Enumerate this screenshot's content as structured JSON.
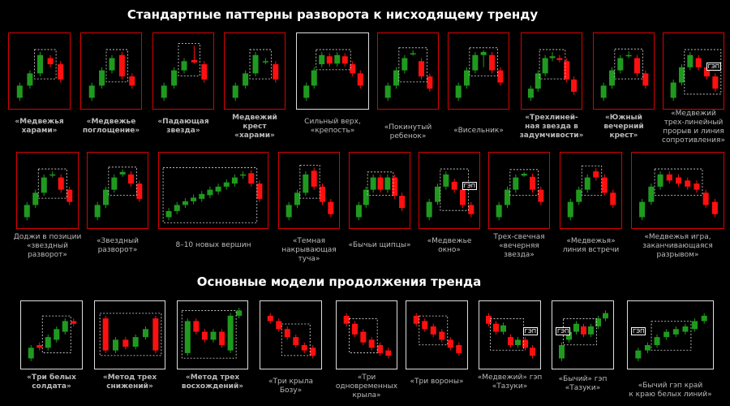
{
  "titles": {
    "reversal": "Стандартные паттерны разворота к нисходящему тренду",
    "continuation": "Основные модели продолжения тренда"
  },
  "colors": {
    "up": "#1f9a1f",
    "down": "#ff1010",
    "frame_reversal": "#d00000",
    "frame_continuation": "#dddddd"
  },
  "panels": [
    {
      "label": "«Медвежья\nхарами»",
      "bold": true,
      "c": [
        [
          1,
          3
        ],
        [
          3,
          5
        ],
        [
          5,
          8
        ],
        [
          7.5,
          6.5
        ],
        [
          6.5,
          4
        ]
      ],
      "hl": [
        2,
        3
      ]
    },
    {
      "label": "«Медвежье\nпоглощение»",
      "bold": true,
      "c": [
        [
          1,
          3
        ],
        [
          3,
          5.5
        ],
        [
          5.5,
          7.5
        ],
        [
          8,
          4.5
        ],
        [
          4.5,
          3
        ]
      ],
      "hl": [
        2,
        3
      ]
    },
    {
      "label": "«Падающая\nзвезда»",
      "bold": true,
      "c": [
        [
          1,
          3
        ],
        [
          3,
          5.5
        ],
        [
          5.5,
          7
        ],
        [
          7.2,
          6.8,
          9.5,
          6.6
        ],
        [
          6.5,
          4
        ]
      ],
      "hl": [
        2,
        3
      ]
    },
    {
      "label": "Медвежий\nкрест\n«харами»",
      "bold": true,
      "c": [
        [
          1,
          3
        ],
        [
          3,
          5
        ],
        [
          5,
          8
        ],
        [
          7,
          7,
          7.5,
          6.5
        ],
        [
          6.5,
          4
        ]
      ],
      "hl": [
        2,
        3
      ]
    },
    {
      "label": "Сильный верх,\n«крепость»",
      "bold": false,
      "w": true,
      "c": [
        [
          1,
          3
        ],
        [
          3,
          5.5
        ],
        [
          6.5,
          8
        ],
        [
          7.8,
          6.6
        ],
        [
          6.6,
          8
        ],
        [
          7.8,
          6.6
        ],
        [
          6.5,
          5
        ],
        [
          5,
          3
        ]
      ],
      "hl": [
        2,
        5
      ]
    },
    {
      "label": "«Покинутый\nребенок»",
      "bold": false,
      "c": [
        [
          1,
          3
        ],
        [
          3,
          5.5
        ],
        [
          5.5,
          7.5
        ],
        [
          8.3,
          8.3,
          8.8,
          7.9
        ],
        [
          7,
          4.5
        ],
        [
          4.5,
          2.5
        ]
      ],
      "hl": [
        2,
        4
      ]
    },
    {
      "label": "«Висельник»",
      "bold": false,
      "c": [
        [
          1,
          3
        ],
        [
          3,
          5.5
        ],
        [
          5.5,
          8
        ],
        [
          8,
          8.5,
          8.8,
          6
        ],
        [
          8,
          5.5
        ],
        [
          5.5,
          3.5
        ]
      ],
      "hl": [
        2,
        4
      ]
    },
    {
      "label": "«Трехлиней-\nная звезда в\nзадумчивости»",
      "bold": true,
      "c": [
        [
          1,
          2.5
        ],
        [
          2.5,
          5
        ],
        [
          5,
          7.5
        ],
        [
          7.5,
          7.8,
          8.5,
          7
        ],
        [
          7.5,
          7.2,
          8,
          6.8
        ],
        [
          7,
          4
        ],
        [
          4,
          2
        ]
      ],
      "hl": [
        2,
        4
      ]
    },
    {
      "label": "«Южный\nвечерний\nкрест»",
      "bold": true,
      "c": [
        [
          1,
          3
        ],
        [
          3,
          5.5
        ],
        [
          5.5,
          7.5
        ],
        [
          8,
          8,
          8.6,
          7.5
        ],
        [
          7.5,
          5
        ],
        [
          5,
          3
        ]
      ],
      "hl": [
        2,
        4
      ]
    },
    {
      "label": "«Медвежий\nтрех-линейный\nпрорыв и линия\nсопротивления»",
      "bold": false,
      "c": [
        [
          1,
          3.5
        ],
        [
          3.5,
          6
        ],
        [
          6,
          8
        ],
        [
          7.5,
          6
        ],
        [
          6,
          4.5
        ],
        [
          4.5,
          2.5
        ]
      ],
      "hl": [
        2,
        5
      ],
      "gap": "ГЭП"
    },
    {
      "label": "Доджи в позиции\n«звездный\nразворот»",
      "bold": false,
      "c": [
        [
          1,
          3
        ],
        [
          3,
          5
        ],
        [
          5,
          7.5
        ],
        [
          8,
          8,
          8.5,
          7.5
        ],
        [
          7.5,
          5.5
        ],
        [
          5.5,
          3.5
        ]
      ],
      "hl": [
        2,
        4
      ]
    },
    {
      "label": "«Звездный\nразворот»",
      "bold": false,
      "c": [
        [
          1,
          3
        ],
        [
          3,
          5.5
        ],
        [
          5.5,
          7.5
        ],
        [
          8,
          8.4,
          8.8,
          7.6
        ],
        [
          8,
          6.5
        ],
        [
          6.5,
          4
        ]
      ],
      "hl": [
        2,
        4
      ]
    },
    {
      "label": "8–10 новых вершин",
      "bold": false,
      "c": [
        [
          1,
          2
        ],
        [
          2,
          3
        ],
        [
          3,
          3.6
        ],
        [
          3.6,
          4.2
        ],
        [
          4,
          4.8
        ],
        [
          4.6,
          5.5
        ],
        [
          5.2,
          6
        ],
        [
          6,
          6.7
        ],
        [
          6.5,
          7.5
        ],
        [
          7.8,
          8
        ],
        [
          8.2,
          6.5
        ],
        [
          6.5,
          4
        ]
      ],
      "hl": [
        0,
        10
      ]
    },
    {
      "label": "«Темная\nнакрывающая\nтуча»",
      "bold": false,
      "c": [
        [
          1,
          3
        ],
        [
          3,
          5
        ],
        [
          5,
          8
        ],
        [
          8.6,
          6
        ],
        [
          6,
          3.5
        ],
        [
          3.5,
          1.5
        ]
      ],
      "hl": [
        2,
        3
      ]
    },
    {
      "label": "«Бычьи щипцы»",
      "bold": false,
      "c": [
        [
          1,
          3
        ],
        [
          3,
          5.5
        ],
        [
          5.5,
          7.5
        ],
        [
          7.5,
          5.5
        ],
        [
          5.5,
          7.5
        ],
        [
          7.5,
          4.5
        ],
        [
          4.5,
          2.5
        ]
      ],
      "hl": [
        2,
        4
      ]
    },
    {
      "label": "«Медвежье\nокно»",
      "bold": false,
      "c": [
        [
          1,
          3.5
        ],
        [
          3.5,
          6
        ],
        [
          6,
          8
        ],
        [
          6.8,
          5.5
        ],
        [
          5.5,
          3
        ],
        [
          3,
          1.5
        ]
      ],
      "hl": [
        2,
        4
      ],
      "gap": "ГЭП"
    },
    {
      "label": "Трех-свечная\n«вечерняя\nзвезда»",
      "bold": false,
      "c": [
        [
          1,
          3
        ],
        [
          3,
          5.5
        ],
        [
          5.5,
          7.5
        ],
        [
          7.8,
          8.1,
          8.4,
          7.6
        ],
        [
          7.6,
          5.5
        ],
        [
          5.5,
          3.5
        ]
      ],
      "hl": [
        2,
        4
      ]
    },
    {
      "label": "«Медвежья»\nлиния встречи",
      "bold": false,
      "c": [
        [
          1,
          3.5
        ],
        [
          3.5,
          5.5
        ],
        [
          5.5,
          7.5
        ],
        [
          8.5,
          7.5
        ],
        [
          7.5,
          5
        ],
        [
          5,
          3
        ]
      ],
      "hl": [
        2,
        3
      ]
    },
    {
      "label": "«Медвежья игра,\nзаканчивающаяся\nразрывом»",
      "bold": false,
      "c": [
        [
          1,
          3.5
        ],
        [
          3.5,
          6
        ],
        [
          6,
          8
        ],
        [
          8,
          7
        ],
        [
          7.5,
          6.5
        ],
        [
          7,
          6
        ],
        [
          6.5,
          5.5
        ],
        [
          5,
          3
        ],
        [
          3.5,
          1.5
        ]
      ],
      "hl": [
        2,
        6
      ]
    },
    {
      "label": "«Три белых\nсолдата»",
      "bold": true,
      "w": true,
      "c": [
        [
          1,
          3
        ],
        [
          3.5,
          3
        ],
        [
          3,
          5
        ],
        [
          4.5,
          6.5
        ],
        [
          6,
          8
        ],
        [
          8,
          7.5
        ]
      ],
      "hl": [
        2,
        4
      ]
    },
    {
      "label": "«Метод трех\nснижений»",
      "bold": true,
      "w": true,
      "c": [
        [
          8.5,
          2.5
        ],
        [
          2.5,
          4.5
        ],
        [
          4.5,
          3.2
        ],
        [
          3.2,
          5
        ],
        [
          5,
          6.5
        ],
        [
          8.5,
          2.5
        ]
      ],
      "hl": [
        0,
        5
      ]
    },
    {
      "label": "«Метод трех\nвосхождений»",
      "bold": true,
      "w": true,
      "c": [
        [
          2,
          8
        ],
        [
          8,
          6
        ],
        [
          6,
          4.5
        ],
        [
          4.5,
          6
        ],
        [
          6,
          3.5
        ],
        [
          2.5,
          9
        ],
        [
          9,
          10
        ]
      ],
      "hl": [
        0,
        5
      ]
    },
    {
      "label": "«Три крыла\nБозу»",
      "bold": false,
      "w": true,
      "c": [
        [
          9,
          8
        ],
        [
          8,
          6.5
        ],
        [
          6.5,
          5
        ],
        [
          5,
          3.5
        ],
        [
          3.5,
          2.5
        ],
        [
          3,
          1.5
        ]
      ],
      "hl": [
        2,
        4
      ]
    },
    {
      "label": "«Три\nодновременных\nкрыла»",
      "bold": false,
      "w": true,
      "c": [
        [
          9,
          7.5
        ],
        [
          7.5,
          5.5
        ],
        [
          6,
          4
        ],
        [
          4.5,
          3
        ],
        [
          3.5,
          2
        ],
        [
          2.5,
          1.5
        ]
      ],
      "hl": [
        1,
        3
      ]
    },
    {
      "label": "«Три вороны»",
      "bold": false,
      "w": true,
      "c": [
        [
          9,
          7.5
        ],
        [
          8,
          6.5
        ],
        [
          7,
          5.5
        ],
        [
          6,
          4.5
        ],
        [
          4.5,
          3
        ],
        [
          3.5,
          2
        ]
      ],
      "hl": [
        1,
        3
      ]
    },
    {
      "label": "«Медвежий» гэп\n«Тазуки»",
      "bold": false,
      "w": true,
      "c": [
        [
          9,
          7.5
        ],
        [
          7.5,
          6
        ],
        [
          6,
          7.2
        ],
        [
          5,
          3.5
        ],
        [
          3.5,
          4.5
        ],
        [
          4.5,
          3
        ],
        [
          3,
          1.5
        ]
      ],
      "hl": [
        1,
        4
      ],
      "gap": "ГЭП"
    },
    {
      "label": "«Бычий» гэп\n«Тазуки»",
      "bold": false,
      "w": true,
      "c": [
        [
          1,
          3.5
        ],
        [
          4.5,
          6
        ],
        [
          6,
          7.5
        ],
        [
          7,
          5.5
        ],
        [
          5.5,
          7
        ],
        [
          7,
          8.5
        ],
        [
          8.5,
          9.5
        ]
      ],
      "hl": [
        1,
        4
      ],
      "gap": "ГЭП"
    },
    {
      "label": "«Бычий гэп край\nк краю белых линий»",
      "bold": false,
      "w": true,
      "c": [
        [
          1,
          2.5
        ],
        [
          2.5,
          3.5
        ],
        [
          3.5,
          5
        ],
        [
          5,
          6
        ],
        [
          5.5,
          6.5
        ],
        [
          6,
          7
        ],
        [
          6.5,
          8
        ],
        [
          8,
          9
        ]
      ],
      "hl": [
        2,
        5
      ],
      "gap": "ГЭП"
    }
  ]
}
